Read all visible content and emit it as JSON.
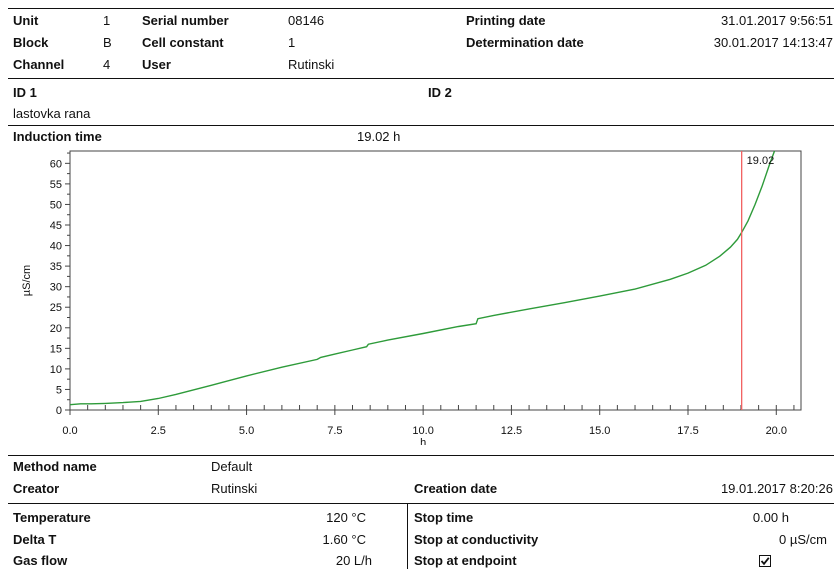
{
  "header": {
    "unit_label": "Unit",
    "unit_value": "1",
    "serial_label": "Serial number",
    "serial_value": "08146",
    "printing_label": "Printing date",
    "printing_value": "31.01.2017 9:56:51",
    "block_label": "Block",
    "block_value": "B",
    "cell_label": "Cell constant",
    "cell_value": "1",
    "determination_label": "Determination date",
    "determination_value": "30.01.2017 14:13:47",
    "channel_label": "Channel",
    "channel_value": "4",
    "user_label": "User",
    "user_value": "Rutinski"
  },
  "ids": {
    "id1_label": "ID 1",
    "id1_value": "lastovka rana",
    "id2_label": "ID 2"
  },
  "induction": {
    "label": "Induction time",
    "value": "19.02 h"
  },
  "chart_data": {
    "type": "line",
    "xlabel": "h",
    "ylabel": "µS/cm",
    "xlim": [
      0,
      20.7
    ],
    "ylim": [
      0,
      63
    ],
    "x_ticks": [
      "0.0",
      "2.5",
      "5.0",
      "7.5",
      "10.0",
      "12.5",
      "15.0",
      "17.5",
      "20.0"
    ],
    "y_ticks": [
      "0",
      "5",
      "10",
      "15",
      "20",
      "25",
      "30",
      "35",
      "40",
      "45",
      "50",
      "55",
      "60"
    ],
    "grid": false,
    "series": [
      {
        "color": "#2e9b3a",
        "x": [
          0,
          0.3,
          0.6,
          1.0,
          1.5,
          2.0,
          2.5,
          3.0,
          4.0,
          5.0,
          6.0,
          7.0,
          7.1,
          7.5,
          8.0,
          8.4,
          8.45,
          9.0,
          10.0,
          11.0,
          11.5,
          11.55,
          12.0,
          13.0,
          14.0,
          15.0,
          16.0,
          17.0,
          17.5,
          18.0,
          18.4,
          18.7,
          18.9,
          19.02,
          19.2,
          19.4,
          19.6,
          19.8,
          19.95
        ],
        "y": [
          1.3,
          1.5,
          1.5,
          1.6,
          1.8,
          2.1,
          2.8,
          3.8,
          6.0,
          8.3,
          10.4,
          12.3,
          12.8,
          13.6,
          14.6,
          15.4,
          16.0,
          17.0,
          18.6,
          20.3,
          21.0,
          22.2,
          23.0,
          24.6,
          26.1,
          27.7,
          29.4,
          31.8,
          33.3,
          35.2,
          37.4,
          39.6,
          41.5,
          43.2,
          46.0,
          50.0,
          54.5,
          59.5,
          63.0
        ]
      }
    ],
    "marker": {
      "x": 19.02,
      "label": "19.02",
      "color": "#f26060"
    }
  },
  "method": {
    "name_label": "Method name",
    "name_value": "Default",
    "creator_label": "Creator",
    "creator_value": "Rutinski",
    "creation_label": "Creation date",
    "creation_value": "19.01.2017 8:20:26"
  },
  "params": {
    "temp_label": "Temperature",
    "temp_value": "120 °C",
    "deltat_label": "Delta T",
    "deltat_value": "1.60 °C",
    "gas_label": "Gas flow",
    "gas_value": "20 L/h",
    "stoptime_label": "Stop time",
    "stoptime_value": "0.00 h",
    "stopcond_label": "Stop at conductivity",
    "stopcond_value": "0 µS/cm",
    "stopend_label": "Stop at endpoint"
  }
}
